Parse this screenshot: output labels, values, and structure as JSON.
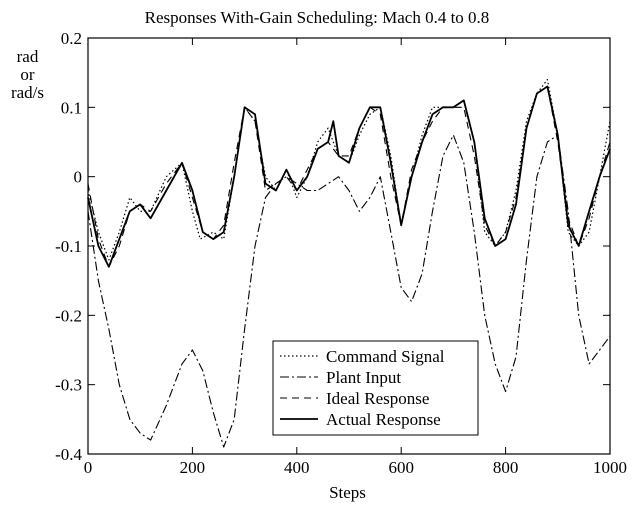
{
  "chart_data": {
    "type": "line",
    "title": "Responses With-Gain Scheduling: Mach 0.4 to 0.8",
    "xlabel": "Steps",
    "ylabel_lines": [
      "rad",
      "or",
      "rad/s"
    ],
    "xlim": [
      0,
      1000
    ],
    "ylim": [
      -0.4,
      0.2
    ],
    "xticks": [
      "0",
      "200",
      "400",
      "600",
      "800",
      "1000"
    ],
    "yticks": [
      "-0.4",
      "-0.3",
      "-0.2",
      "-0.1",
      "0",
      "0.1",
      "0.2"
    ],
    "grid": false,
    "legend_position": "lower-center",
    "series": [
      {
        "name": "Command Signal",
        "style": "dotted",
        "x": [
          0,
          20,
          40,
          60,
          80,
          100,
          120,
          150,
          180,
          200,
          215,
          240,
          260,
          280,
          300,
          320,
          340,
          360,
          380,
          400,
          420,
          440,
          460,
          480,
          500,
          520,
          540,
          560,
          580,
          600,
          620,
          640,
          660,
          680,
          700,
          720,
          740,
          760,
          780,
          800,
          820,
          840,
          860,
          880,
          900,
          920,
          940,
          960,
          980,
          1000
        ],
        "y": [
          -0.02,
          -0.08,
          -0.12,
          -0.08,
          -0.03,
          -0.05,
          -0.05,
          0.0,
          0.02,
          -0.05,
          -0.09,
          -0.08,
          -0.09,
          0.0,
          0.1,
          0.08,
          0.0,
          -0.02,
          0.01,
          -0.03,
          0.0,
          0.05,
          0.07,
          0.03,
          0.02,
          0.06,
          0.09,
          0.1,
          0.03,
          -0.07,
          0.0,
          0.06,
          0.1,
          0.1,
          0.1,
          0.11,
          0.05,
          -0.08,
          -0.1,
          -0.08,
          -0.02,
          0.08,
          0.12,
          0.14,
          0.06,
          -0.08,
          -0.1,
          -0.08,
          0.0,
          0.08
        ]
      },
      {
        "name": "Plant Input",
        "style": "dash-dot",
        "x": [
          0,
          20,
          40,
          60,
          80,
          100,
          120,
          150,
          180,
          200,
          220,
          240,
          260,
          280,
          300,
          320,
          340,
          360,
          380,
          400,
          420,
          440,
          460,
          480,
          500,
          520,
          540,
          560,
          580,
          600,
          620,
          640,
          660,
          680,
          700,
          720,
          740,
          760,
          780,
          800,
          820,
          840,
          860,
          880,
          900,
          920,
          940,
          960,
          980,
          1000
        ],
        "y": [
          -0.05,
          -0.15,
          -0.22,
          -0.3,
          -0.35,
          -0.37,
          -0.38,
          -0.33,
          -0.27,
          -0.25,
          -0.28,
          -0.34,
          -0.39,
          -0.35,
          -0.22,
          -0.1,
          -0.03,
          -0.01,
          0.0,
          -0.01,
          -0.02,
          -0.02,
          -0.01,
          0.0,
          -0.02,
          -0.05,
          -0.03,
          0.0,
          -0.08,
          -0.16,
          -0.18,
          -0.14,
          -0.05,
          0.03,
          0.06,
          0.02,
          -0.08,
          -0.2,
          -0.27,
          -0.31,
          -0.26,
          -0.12,
          0.0,
          0.05,
          0.06,
          -0.05,
          -0.2,
          -0.27,
          -0.25,
          -0.23
        ]
      },
      {
        "name": "Ideal Response",
        "style": "dashed",
        "x": [
          0,
          20,
          40,
          60,
          80,
          100,
          120,
          150,
          180,
          200,
          220,
          240,
          260,
          280,
          300,
          320,
          340,
          360,
          380,
          400,
          420,
          440,
          460,
          480,
          500,
          520,
          540,
          560,
          580,
          600,
          620,
          640,
          660,
          680,
          700,
          720,
          740,
          760,
          780,
          800,
          820,
          840,
          860,
          880,
          900,
          920,
          940,
          960,
          980,
          1000
        ],
        "y": [
          -0.01,
          -0.09,
          -0.13,
          -0.1,
          -0.05,
          -0.04,
          -0.05,
          -0.01,
          0.02,
          -0.03,
          -0.08,
          -0.09,
          -0.07,
          0.02,
          0.1,
          0.08,
          -0.02,
          -0.01,
          0.0,
          -0.02,
          0.01,
          0.04,
          0.05,
          0.03,
          0.03,
          0.07,
          0.1,
          0.09,
          0.0,
          -0.07,
          0.01,
          0.05,
          0.08,
          0.1,
          0.1,
          0.1,
          0.03,
          -0.07,
          -0.1,
          -0.08,
          -0.03,
          0.07,
          0.12,
          0.13,
          0.05,
          -0.06,
          -0.1,
          -0.06,
          0.0,
          0.05
        ]
      },
      {
        "name": "Actual Response",
        "style": "solid",
        "x": [
          0,
          20,
          40,
          60,
          80,
          100,
          120,
          150,
          180,
          200,
          220,
          240,
          260,
          280,
          300,
          320,
          340,
          360,
          380,
          400,
          420,
          440,
          460,
          470,
          480,
          500,
          520,
          540,
          560,
          580,
          600,
          620,
          640,
          660,
          680,
          700,
          720,
          740,
          760,
          780,
          800,
          820,
          840,
          860,
          880,
          900,
          920,
          940,
          960,
          980,
          1000
        ],
        "y": [
          -0.03,
          -0.1,
          -0.13,
          -0.09,
          -0.05,
          -0.04,
          -0.06,
          -0.02,
          0.02,
          -0.02,
          -0.08,
          -0.09,
          -0.08,
          0.0,
          0.1,
          0.09,
          -0.01,
          -0.02,
          0.01,
          -0.02,
          0.0,
          0.04,
          0.05,
          0.08,
          0.03,
          0.02,
          0.07,
          0.1,
          0.1,
          0.02,
          -0.07,
          0.0,
          0.05,
          0.09,
          0.1,
          0.1,
          0.11,
          0.05,
          -0.06,
          -0.1,
          -0.09,
          -0.04,
          0.07,
          0.12,
          0.13,
          0.06,
          -0.07,
          -0.1,
          -0.05,
          0.0,
          0.04
        ]
      }
    ]
  }
}
